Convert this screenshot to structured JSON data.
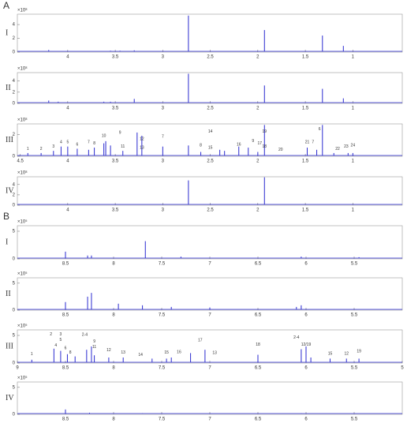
{
  "panel_labels": [
    "A",
    "B"
  ],
  "chart_data": [
    {
      "type": "spectrum",
      "label": "I",
      "y_exponent": "×10⁸",
      "color": "#2a2ad0",
      "x": [
        4.2,
        3.55,
        3.45,
        3.3,
        2.73,
        1.93,
        1.32,
        1.1
      ],
      "values": [
        0.3,
        0.2,
        0.2,
        0.25,
        5.3,
        3.2,
        2.4,
        0.9
      ],
      "xlim": [
        4.53,
        0.48
      ],
      "xticks": [
        4,
        3.5,
        3,
        2.5,
        2,
        1.5,
        1
      ],
      "ylim": [
        0,
        5.5
      ],
      "yticks": [
        0,
        2,
        4
      ]
    },
    {
      "type": "spectrum",
      "label": "II",
      "y_exponent": "×10⁸",
      "color": "#2a2ad0",
      "x": [
        4.2,
        4.1,
        3.62,
        3.55,
        3.3,
        2.73,
        1.93,
        1.32,
        1.1
      ],
      "values": [
        0.5,
        0.3,
        0.3,
        0.3,
        0.8,
        5.3,
        3.2,
        2.6,
        0.9
      ],
      "xlim": [
        4.53,
        0.48
      ],
      "xticks": [
        4,
        3.5,
        3,
        2.5,
        2,
        1.5,
        1
      ],
      "ylim": [
        0,
        5.5
      ],
      "yticks": [
        0,
        2,
        4
      ]
    },
    {
      "type": "spectrum",
      "label": "III",
      "y_exponent": "×10⁸",
      "color": "#2a2ad0",
      "x": [
        4.42,
        4.28,
        4.15,
        4.07,
        4.0,
        3.9,
        3.78,
        3.72,
        3.62,
        3.6,
        3.55,
        3.42,
        3.27,
        3.22,
        3.0,
        2.73,
        2.6,
        2.4,
        2.35,
        2.2,
        2.1,
        2.0,
        1.93,
        1.48,
        1.38,
        1.32,
        1.2,
        1.05,
        1.0
      ],
      "values": [
        0.3,
        0.3,
        0.5,
        0.9,
        0.9,
        0.7,
        0.6,
        0.8,
        1.2,
        1.4,
        1.0,
        0.5,
        2.2,
        1.9,
        0.9,
        1.0,
        0.4,
        0.6,
        0.5,
        0.9,
        0.8,
        0.4,
        2.9,
        0.8,
        0.6,
        2.9,
        0.3,
        0.3,
        0.3
      ],
      "xlim": [
        4.53,
        0.48
      ],
      "xticks": [
        4.5,
        4,
        3.5,
        3,
        2.5,
        2,
        1.5,
        1
      ],
      "ylim": [
        0,
        3
      ],
      "yticks": [
        0,
        2
      ],
      "annotations": [
        {
          "text": "1",
          "x": 4.42,
          "y": 0.7
        },
        {
          "text": "2",
          "x": 4.28,
          "y": 0.7
        },
        {
          "text": "3",
          "x": 4.15,
          "y": 0.9
        },
        {
          "text": "4",
          "x": 4.07,
          "y": 1.3
        },
        {
          "text": "5",
          "x": 4.0,
          "y": 1.3
        },
        {
          "text": "6",
          "x": 3.9,
          "y": 1.1
        },
        {
          "text": "7",
          "x": 3.78,
          "y": 1.3
        },
        {
          "text": "8",
          "x": 3.72,
          "y": 1.2
        },
        {
          "text": "10",
          "x": 3.62,
          "y": 1.9
        },
        {
          "text": "9",
          "x": 3.45,
          "y": 2.2
        },
        {
          "text": "11",
          "x": 3.42,
          "y": 0.9
        },
        {
          "text": "12",
          "x": 3.22,
          "y": 1.6
        },
        {
          "text": "13",
          "x": 3.22,
          "y": 0.8
        },
        {
          "text": "7",
          "x": 3.0,
          "y": 1.8
        },
        {
          "text": "14",
          "x": 2.5,
          "y": 2.3
        },
        {
          "text": "8",
          "x": 2.6,
          "y": 1.0
        },
        {
          "text": "15",
          "x": 2.5,
          "y": 0.8
        },
        {
          "text": "16",
          "x": 2.2,
          "y": 1.1
        },
        {
          "text": "9",
          "x": 2.05,
          "y": 1.4
        },
        {
          "text": "17",
          "x": 1.98,
          "y": 1.2
        },
        {
          "text": "18",
          "x": 1.93,
          "y": 0.9
        },
        {
          "text": "19",
          "x": 1.93,
          "y": 2.3
        },
        {
          "text": "20",
          "x": 1.76,
          "y": 0.6
        },
        {
          "text": "21",
          "x": 1.48,
          "y": 1.3
        },
        {
          "text": "6",
          "x": 1.35,
          "y": 2.5
        },
        {
          "text": "7",
          "x": 1.42,
          "y": 1.3
        },
        {
          "text": "22",
          "x": 1.16,
          "y": 0.7
        },
        {
          "text": "23",
          "x": 1.07,
          "y": 0.9
        },
        {
          "text": "24",
          "x": 1.0,
          "y": 1.0
        }
      ]
    },
    {
      "type": "spectrum",
      "label": "IV",
      "y_exponent": "×10⁸",
      "color": "#2a2ad0",
      "x": [
        2.73,
        1.93
      ],
      "values": [
        4.8,
        5.4
      ],
      "xlim": [
        4.53,
        0.48
      ],
      "xticks": [
        4,
        3.5,
        3,
        2.5,
        2,
        1.5,
        1
      ],
      "ylim": [
        0,
        5.5
      ],
      "yticks": [
        0,
        2,
        4
      ]
    },
    {
      "type": "spectrum",
      "label": "I",
      "y_exponent": "×10⁵",
      "color": "#2a2ad0",
      "x": [
        8.5,
        8.27,
        8.23,
        7.67,
        7.3,
        6.05,
        5.45
      ],
      "values": [
        1.3,
        0.6,
        0.6,
        3.2,
        0.4,
        0.4,
        0.3
      ],
      "xlim": [
        9,
        5
      ],
      "xticks": [
        8.5,
        8,
        7.5,
        7,
        6.5,
        6,
        5.5
      ],
      "ylim": [
        0,
        6
      ],
      "yticks": [
        0,
        5
      ]
    },
    {
      "type": "spectrum",
      "label": "II",
      "y_exponent": "×10⁵",
      "color": "#2a2ad0",
      "x": [
        8.5,
        8.27,
        8.23,
        7.95,
        7.7,
        7.4,
        7.0,
        6.1,
        6.05
      ],
      "values": [
        1.5,
        2.5,
        3.2,
        1.2,
        0.9,
        0.6,
        0.5,
        0.6,
        0.9
      ],
      "xlim": [
        9,
        5
      ],
      "xticks": [
        8.5,
        8,
        7.5,
        7,
        6.5,
        6,
        5.5
      ],
      "ylim": [
        0,
        6
      ],
      "yticks": [
        0,
        5
      ]
    },
    {
      "type": "spectrum",
      "label": "III",
      "y_exponent": "×10⁵",
      "color": "#2a2ad0",
      "x": [
        8.85,
        8.62,
        8.55,
        8.48,
        8.4,
        8.28,
        8.23,
        8.2,
        8.05,
        7.9,
        7.6,
        7.45,
        7.4,
        7.2,
        7.05,
        6.5,
        6.05,
        6.0,
        5.95,
        5.75,
        5.58,
        5.45
      ],
      "values": [
        0.6,
        2.6,
        2.2,
        1.6,
        1.2,
        2.4,
        3.0,
        1.4,
        1.0,
        1.0,
        0.8,
        0.8,
        1.0,
        1.8,
        2.4,
        1.5,
        2.5,
        3.0,
        1.0,
        0.8,
        0.8,
        0.8
      ],
      "xlim": [
        9,
        5
      ],
      "xticks": [
        9,
        8.5,
        8,
        7.5,
        7,
        6.5,
        6,
        5.5,
        5
      ],
      "ylim": [
        0,
        6
      ],
      "yticks": [
        0,
        5
      ],
      "annotations": [
        {
          "text": "1",
          "x": 8.85,
          "y": 1.6
        },
        {
          "text": "2",
          "x": 8.65,
          "y": 5.2
        },
        {
          "text": "3",
          "x": 8.55,
          "y": 5.2
        },
        {
          "text": "4",
          "x": 8.6,
          "y": 3.2
        },
        {
          "text": "5",
          "x": 8.55,
          "y": 4.2
        },
        {
          "text": "6",
          "x": 8.5,
          "y": 2.7
        },
        {
          "text": "8",
          "x": 8.45,
          "y": 1.9
        },
        {
          "text": "2-4",
          "x": 8.3,
          "y": 5.1
        },
        {
          "text": "9",
          "x": 8.2,
          "y": 3.9
        },
        {
          "text": "11",
          "x": 8.2,
          "y": 2.9
        },
        {
          "text": "12",
          "x": 8.05,
          "y": 2.3
        },
        {
          "text": "13",
          "x": 7.9,
          "y": 1.9
        },
        {
          "text": "14",
          "x": 7.72,
          "y": 1.5
        },
        {
          "text": "15",
          "x": 7.45,
          "y": 1.9
        },
        {
          "text": "16",
          "x": 7.32,
          "y": 2.0
        },
        {
          "text": "17",
          "x": 7.1,
          "y": 4.1
        },
        {
          "text": "13",
          "x": 6.95,
          "y": 1.8
        },
        {
          "text": "18",
          "x": 6.5,
          "y": 3.3
        },
        {
          "text": "2-4",
          "x": 6.1,
          "y": 4.6
        },
        {
          "text": "12/19",
          "x": 6.0,
          "y": 3.3
        },
        {
          "text": "15",
          "x": 5.75,
          "y": 1.7
        },
        {
          "text": "12",
          "x": 5.58,
          "y": 1.7
        },
        {
          "text": "19",
          "x": 5.45,
          "y": 2.1
        }
      ]
    },
    {
      "type": "spectrum",
      "label": "IV",
      "y_exponent": "×10⁵",
      "color": "#2a2ad0",
      "x": [
        8.5,
        8.25,
        7.7,
        6.05
      ],
      "values": [
        0.9,
        0.3,
        0.2,
        0.2
      ],
      "xlim": [
        9,
        5
      ],
      "xticks": [
        8.5,
        8,
        7.5,
        7,
        6.5,
        6,
        5.5
      ],
      "ylim": [
        0,
        6
      ],
      "yticks": [
        0,
        5
      ]
    }
  ]
}
